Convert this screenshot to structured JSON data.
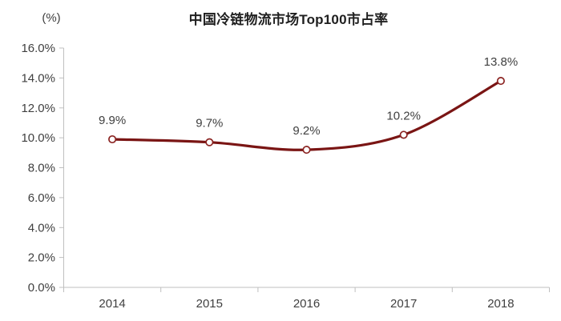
{
  "chart": {
    "title": "中国冷链物流市场Top100市占率",
    "unit_label": "(%)"
  },
  "chart_data": {
    "type": "line",
    "smooth": true,
    "title": "中国冷链物流市场Top100市占率",
    "xlabel": "",
    "ylabel": "(%)",
    "categories": [
      "2014",
      "2015",
      "2016",
      "2017",
      "2018"
    ],
    "values": [
      9.9,
      9.7,
      9.2,
      10.2,
      13.8
    ],
    "data_labels": [
      "9.9%",
      "9.7%",
      "9.2%",
      "10.2%",
      "13.8%"
    ],
    "ylim": [
      0,
      16
    ],
    "ytick_step": 2,
    "ytick_labels": [
      "0.0%",
      "2.0%",
      "4.0%",
      "6.0%",
      "8.0%",
      "10.0%",
      "12.0%",
      "14.0%",
      "16.0%"
    ],
    "grid": false,
    "legend_position": "none",
    "colors": {
      "line": "#7a1514",
      "marker_fill": "#ffffff",
      "marker_stroke": "#8b2422",
      "axis": "#bfbfbf",
      "tick_text": "#404040",
      "data_label_text": "#404040",
      "title_text": "#1f1f1f"
    }
  }
}
